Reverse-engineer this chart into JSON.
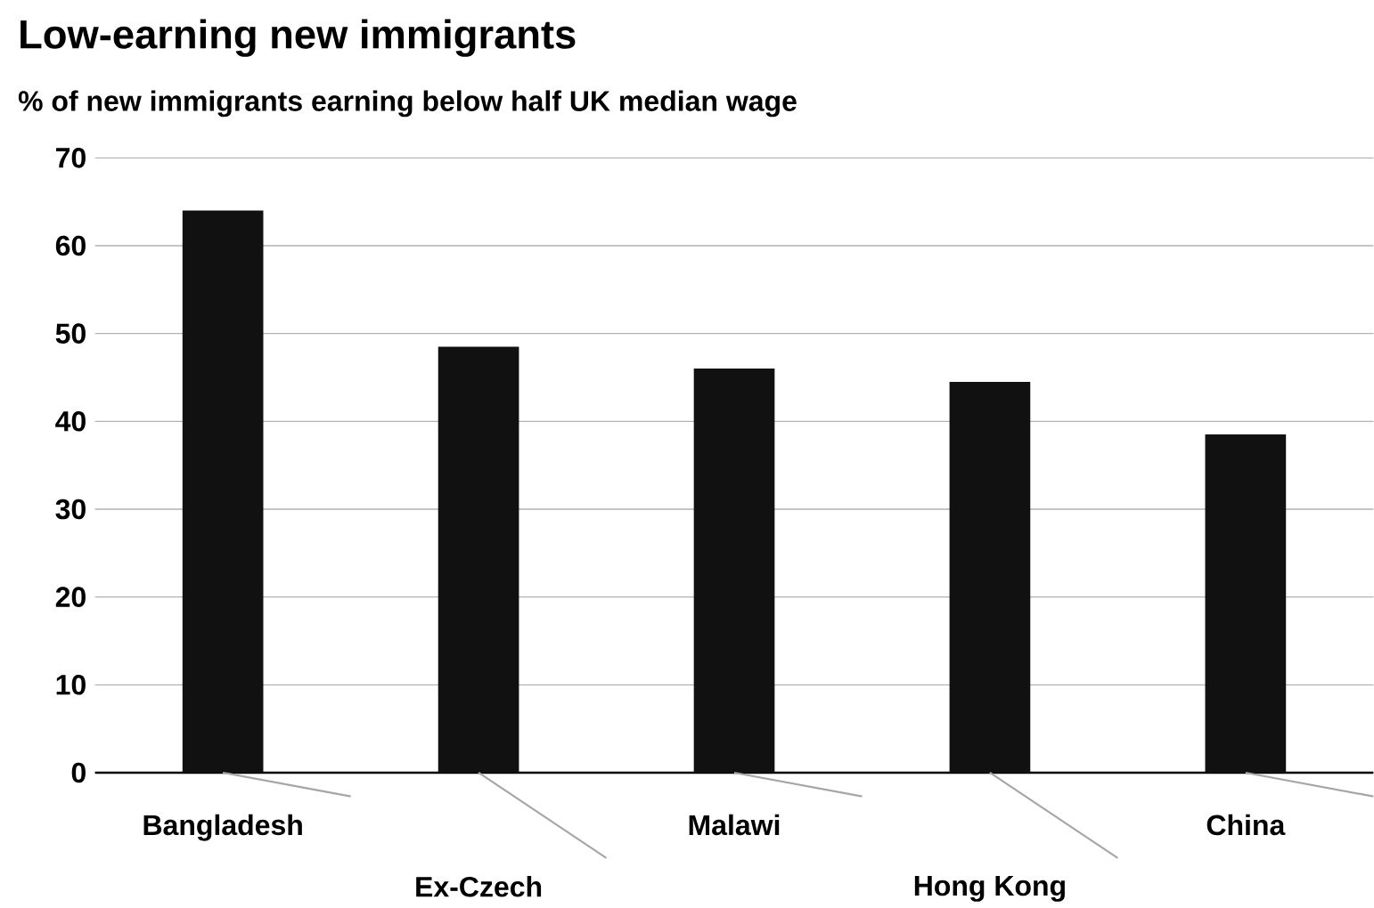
{
  "chart_data": {
    "type": "bar",
    "title": "Low-earning new immigrants",
    "subtitle": "% of new immigrants earning below half UK median wage",
    "categories": [
      "Bangladesh",
      "Ex-Czech",
      "Malawi",
      "Hong Kong",
      "China"
    ],
    "values": [
      64,
      48.5,
      46,
      44.5,
      38.5
    ],
    "color": "#111111",
    "ylim": [
      0,
      70
    ],
    "yticks": [
      0,
      10,
      20,
      30,
      40,
      50,
      60,
      70
    ],
    "grid": "y"
  }
}
